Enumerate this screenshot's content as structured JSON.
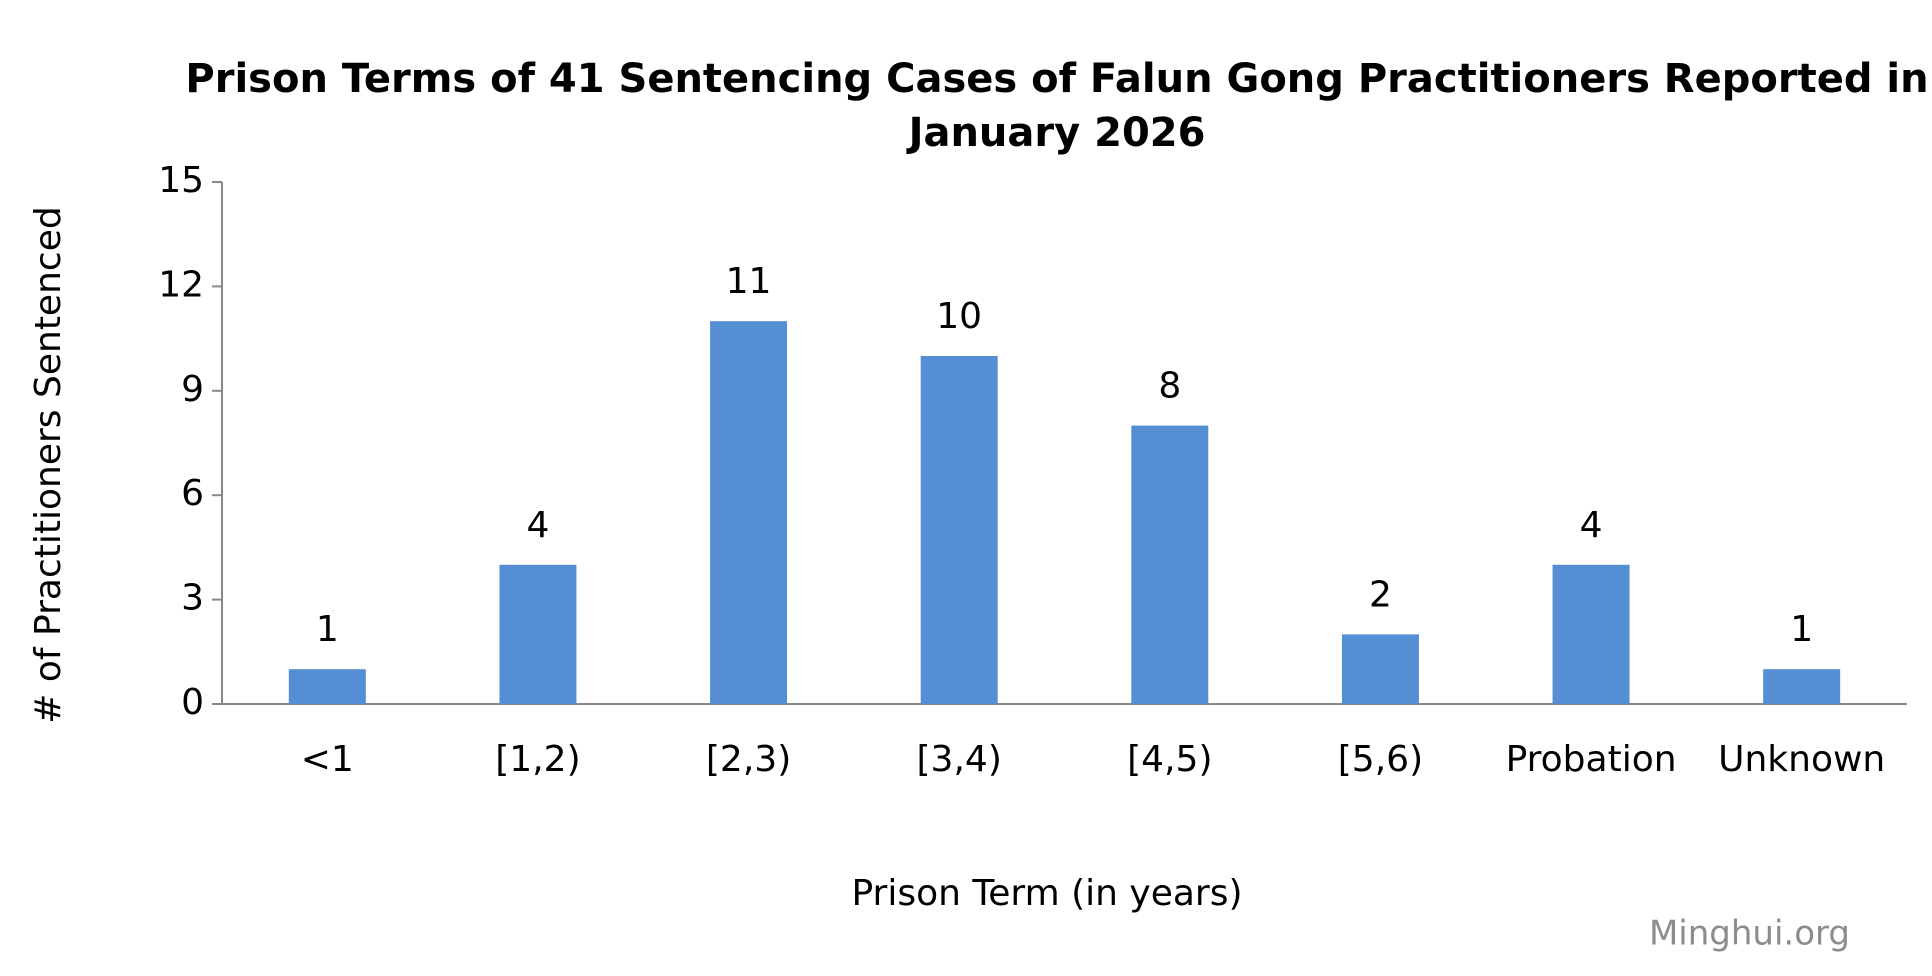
{
  "chart_data": {
    "type": "bar",
    "title": "Prison Terms of 41 Sentencing Cases of Falun Gong Practitioners Reported in January 2026",
    "x_label": "Prison Term (in years)",
    "y_label": "# of Practitioners Sentenced",
    "categories": [
      "<1",
      "[1,2)",
      "[2,3)",
      "[3,4)",
      "[4,5)",
      "[5,6)",
      "Probation",
      "Unknown"
    ],
    "values": [
      1,
      4,
      11,
      10,
      8,
      2,
      4,
      1
    ],
    "color": "#558ed5",
    "ylim": [
      0,
      15
    ],
    "yticks": [
      0,
      3,
      6,
      9,
      12,
      15
    ],
    "grid": false,
    "watermark": "Minghui.org"
  }
}
